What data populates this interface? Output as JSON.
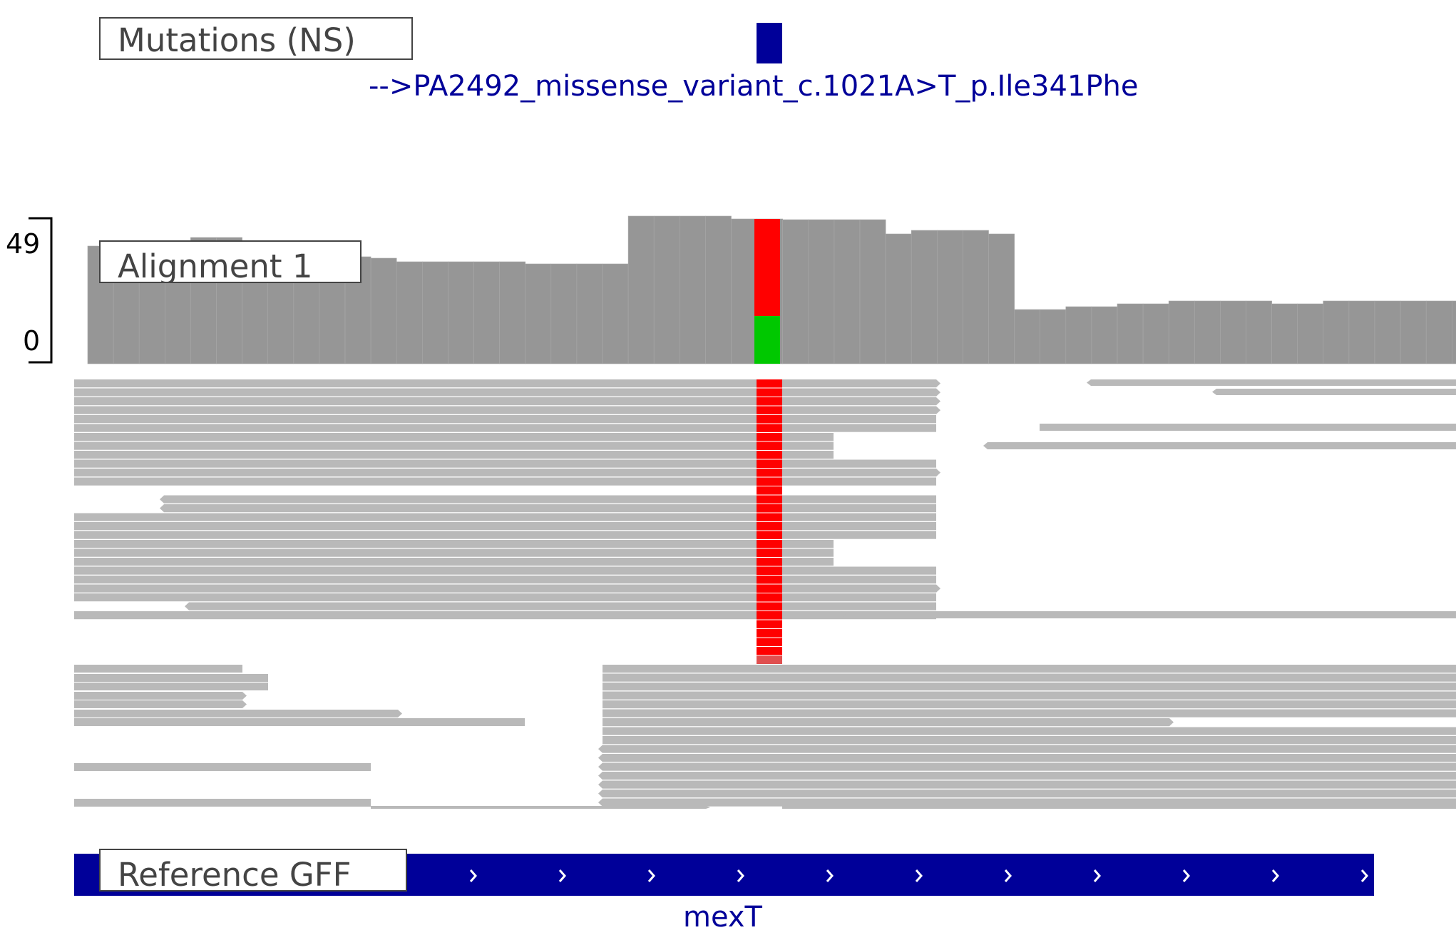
{
  "mutations_track": {
    "label": "Mutations (NS)",
    "variant_label": "-->PA2492_missense_variant_c.1021A>T_p.Ile341Phe",
    "color": "#000099"
  },
  "alignment_track": {
    "label": "Alignment 1",
    "axis_max": "49",
    "axis_min": "0",
    "coverage_color": "#969696",
    "read_color": "#b9b9b9",
    "mismatch_color": "#ff0000",
    "ref_allele_color": "#00c800",
    "variant_ref_fraction": 0.33
  },
  "reference_track": {
    "label": "Reference GFF",
    "gene_name": "mexT",
    "color": "#000099"
  },
  "icons": [
    "strand-arrow-icon",
    "read-direction-arrow-icon"
  ]
}
